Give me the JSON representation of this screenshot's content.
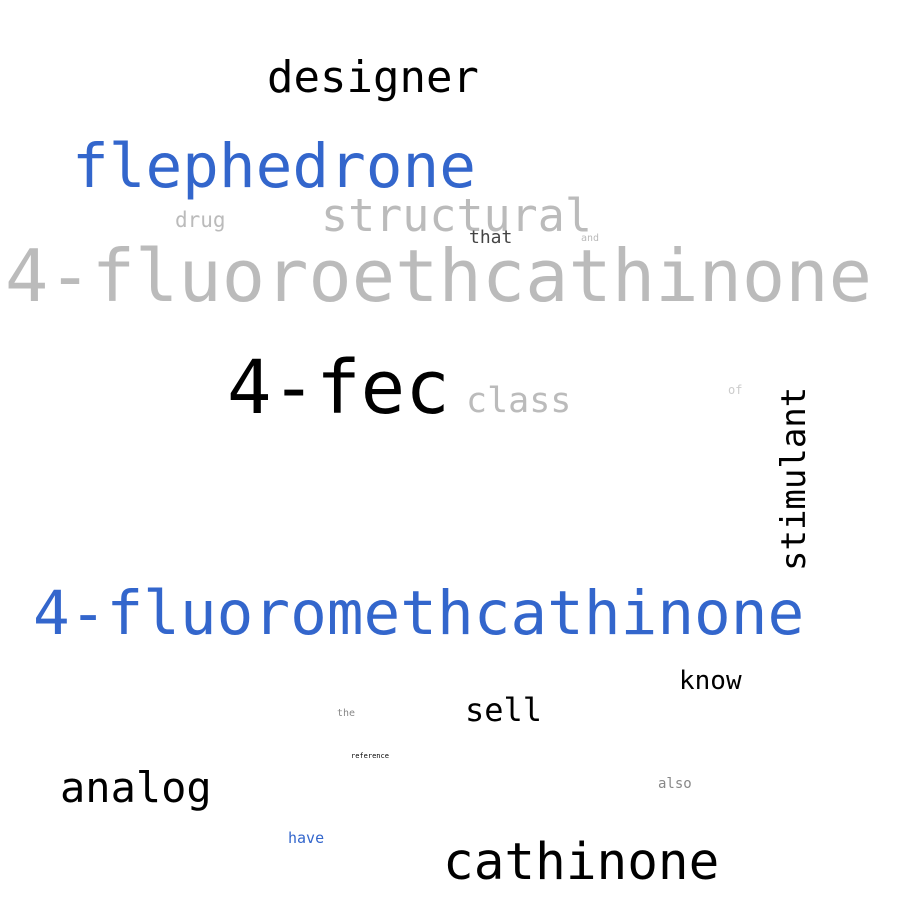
{
  "word_cloud": {
    "words": [
      {
        "id": "designer",
        "text": "designer",
        "color": "#000000"
      },
      {
        "id": "flephedrone",
        "text": "flephedrone",
        "color": "#3366cc"
      },
      {
        "id": "structural",
        "text": "structural",
        "color": "#bbbbbb"
      },
      {
        "id": "drug",
        "text": "drug",
        "color": "#bbbbbb"
      },
      {
        "id": "that",
        "text": "that",
        "color": "#444444"
      },
      {
        "id": "and",
        "text": "and",
        "color": "#bbbbbb"
      },
      {
        "id": "4-fluoroethcathinone",
        "text": "4-fluoroethcathinone",
        "color": "#bbbbbb"
      },
      {
        "id": "4-fec",
        "text": "4-fec",
        "color": "#000000"
      },
      {
        "id": "class",
        "text": "class",
        "color": "#bbbbbb"
      },
      {
        "id": "of",
        "text": "of",
        "color": "#bbbbbb"
      },
      {
        "id": "stimulant",
        "text": "stimulant",
        "color": "#000000"
      },
      {
        "id": "4-fluoromethcathinone",
        "text": "4-fluoromethcathinone",
        "color": "#3366cc"
      },
      {
        "id": "know",
        "text": "know",
        "color": "#000000"
      },
      {
        "id": "sell",
        "text": "sell",
        "color": "#000000"
      },
      {
        "id": "the",
        "text": "the",
        "color": "#888888"
      },
      {
        "id": "reference",
        "text": "reference",
        "color": "#000000"
      },
      {
        "id": "analog",
        "text": "analog",
        "color": "#000000"
      },
      {
        "id": "also",
        "text": "also",
        "color": "#888888"
      },
      {
        "id": "have",
        "text": "have",
        "color": "#3366cc"
      },
      {
        "id": "cathinone",
        "text": "cathinone",
        "color": "#000000"
      }
    ]
  }
}
